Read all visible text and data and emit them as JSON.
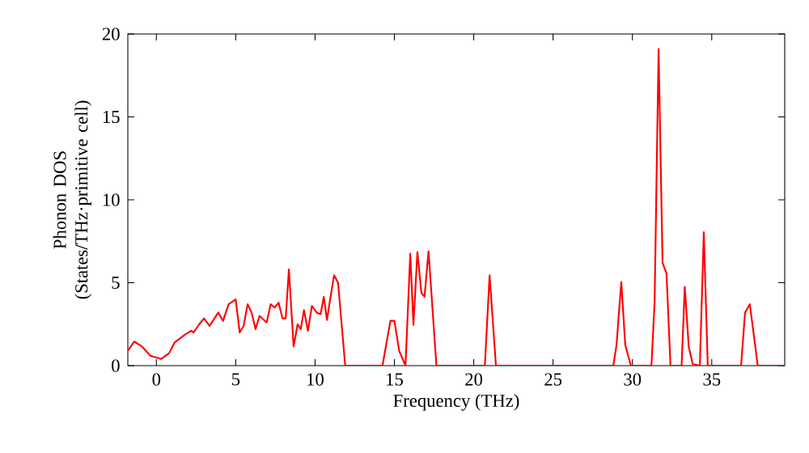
{
  "chart_data": {
    "type": "line",
    "xlabel": "Frequency (THz)",
    "ylabel": "Phonon DOS (States/THz·primitive cell)",
    "xlim": [
      -1.8,
      39.6
    ],
    "ylim": [
      0,
      20
    ],
    "xticks": [
      0,
      5,
      10,
      15,
      20,
      25,
      30,
      35
    ],
    "yticks": [
      0,
      5,
      10,
      15,
      20
    ],
    "grid": false,
    "series": [
      {
        "color": "#ff0000",
        "x": [
          -1.8,
          -1.4,
          -0.9,
          -0.38,
          0.3,
          0.8,
          1.15,
          1.84,
          2.2,
          2.35,
          2.7,
          3.0,
          3.35,
          3.9,
          4.2,
          4.55,
          5.0,
          5.25,
          5.5,
          5.75,
          6.0,
          6.25,
          6.5,
          6.95,
          7.2,
          7.45,
          7.7,
          7.95,
          8.15,
          8.35,
          8.65,
          8.9,
          9.1,
          9.3,
          9.55,
          9.8,
          10.1,
          10.35,
          10.55,
          10.75,
          11.0,
          11.2,
          11.45,
          11.9,
          14.25,
          14.75,
          15.0,
          15.3,
          15.7,
          16.0,
          16.2,
          16.45,
          16.7,
          16.9,
          17.15,
          17.65,
          20.7,
          21.0,
          21.4,
          28.8,
          29.0,
          29.3,
          29.55,
          29.9,
          31.2,
          31.4,
          31.65,
          31.9,
          32.15,
          32.4,
          33.1,
          33.3,
          33.55,
          33.8,
          34.25,
          34.5,
          34.75,
          36.85,
          37.1,
          37.4,
          37.9,
          39.6
        ],
        "values": [
          0.9,
          1.45,
          1.15,
          0.6,
          0.4,
          0.75,
          1.4,
          1.9,
          2.1,
          2.0,
          2.5,
          2.85,
          2.4,
          3.2,
          2.7,
          3.7,
          4.0,
          2.0,
          2.4,
          3.7,
          3.2,
          2.2,
          3.0,
          2.6,
          3.7,
          3.5,
          3.8,
          2.85,
          2.85,
          5.8,
          1.15,
          2.5,
          2.2,
          3.35,
          2.1,
          3.6,
          3.2,
          3.1,
          4.15,
          2.75,
          4.3,
          5.45,
          5.0,
          0,
          0,
          2.7,
          2.7,
          0.9,
          0,
          6.75,
          2.45,
          6.85,
          4.4,
          4.15,
          6.9,
          0,
          0,
          5.45,
          0,
          0,
          1.25,
          5.05,
          1.25,
          0,
          0,
          3.85,
          19.1,
          6.2,
          5.55,
          0,
          0,
          4.75,
          1.15,
          0.1,
          0,
          8.05,
          0,
          0,
          3.2,
          3.7,
          0,
          0
        ]
      }
    ]
  }
}
